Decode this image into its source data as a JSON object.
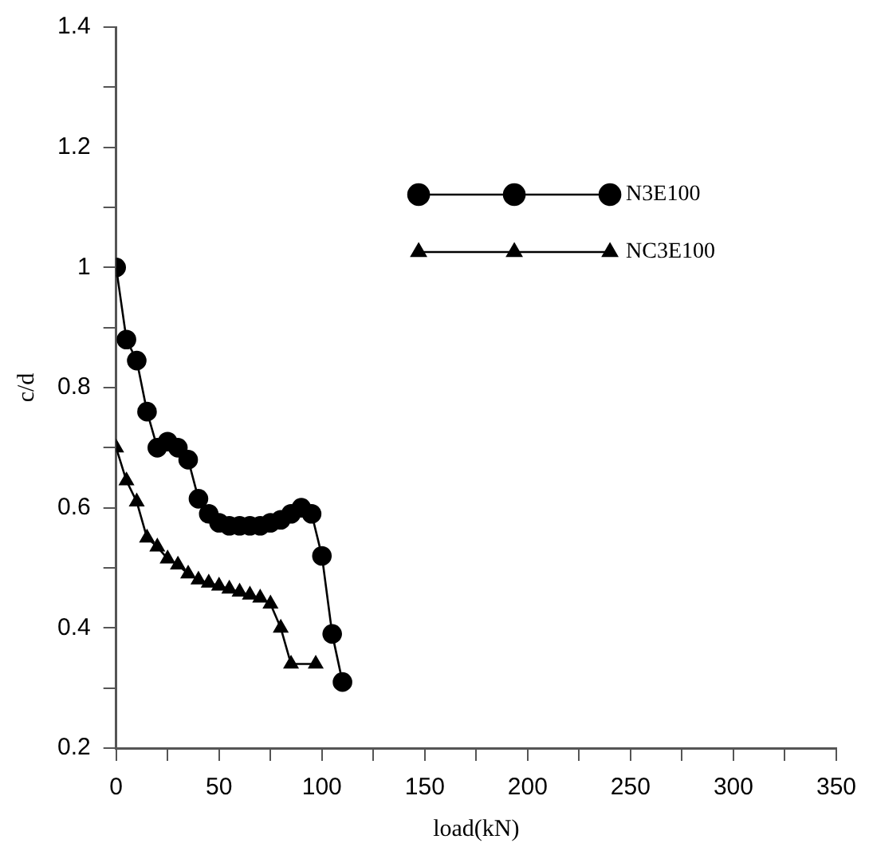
{
  "chart_data": {
    "type": "line",
    "xlabel": "load(kN)",
    "ylabel": "c/d",
    "xlim": [
      0,
      350
    ],
    "xticks": [
      0,
      {
        "value": 25,
        "label": null
      },
      50,
      {
        "value": 75,
        "label": null
      },
      100,
      {
        "value": 125,
        "label": null
      },
      150,
      {
        "value": 175,
        "label": null
      },
      200,
      {
        "value": 225,
        "label": null
      },
      250,
      {
        "value": 275,
        "label": null
      },
      300,
      {
        "value": 325,
        "label": null
      },
      350
    ],
    "ylim": [
      0.2,
      1.4
    ],
    "yticks": [
      0.2,
      {
        "value": 0.3,
        "label": null
      },
      0.4,
      {
        "value": 0.5,
        "label": null
      },
      0.6,
      {
        "value": 0.7,
        "label": null
      },
      0.8,
      {
        "value": 0.9,
        "label": null
      },
      1,
      {
        "value": 1.1,
        "label": null
      },
      1.2,
      {
        "value": 1.3,
        "label": null
      },
      1.4
    ],
    "grid": false,
    "legend": "top right",
    "line_style": "solid",
    "series": [
      {
        "name": "N3E100",
        "color": "#000000",
        "marker": "circle",
        "x": [
          0,
          5,
          10,
          15,
          20,
          25,
          30,
          35,
          40,
          45,
          50,
          55,
          60,
          65,
          70,
          75,
          80,
          85,
          90,
          95,
          100,
          105,
          110
        ],
        "values": [
          1.0,
          0.88,
          0.845,
          0.76,
          0.7,
          0.71,
          0.7,
          0.68,
          0.615,
          0.59,
          0.575,
          0.57,
          0.57,
          0.57,
          0.57,
          0.575,
          0.58,
          0.59,
          0.6,
          0.59,
          0.52,
          0.39,
          0.31
        ]
      },
      {
        "name": "NC3E100",
        "color": "#000000",
        "marker": "triangle",
        "x": [
          0,
          5,
          10,
          15,
          20,
          25,
          30,
          35,
          40,
          45,
          50,
          55,
          60,
          65,
          70,
          75,
          80,
          85,
          97
        ],
        "values": [
          0.7,
          0.645,
          0.61,
          0.55,
          0.535,
          0.515,
          0.505,
          0.49,
          0.48,
          0.475,
          0.47,
          0.465,
          0.46,
          0.455,
          0.45,
          0.44,
          0.4,
          0.34,
          0.34
        ]
      }
    ]
  }
}
